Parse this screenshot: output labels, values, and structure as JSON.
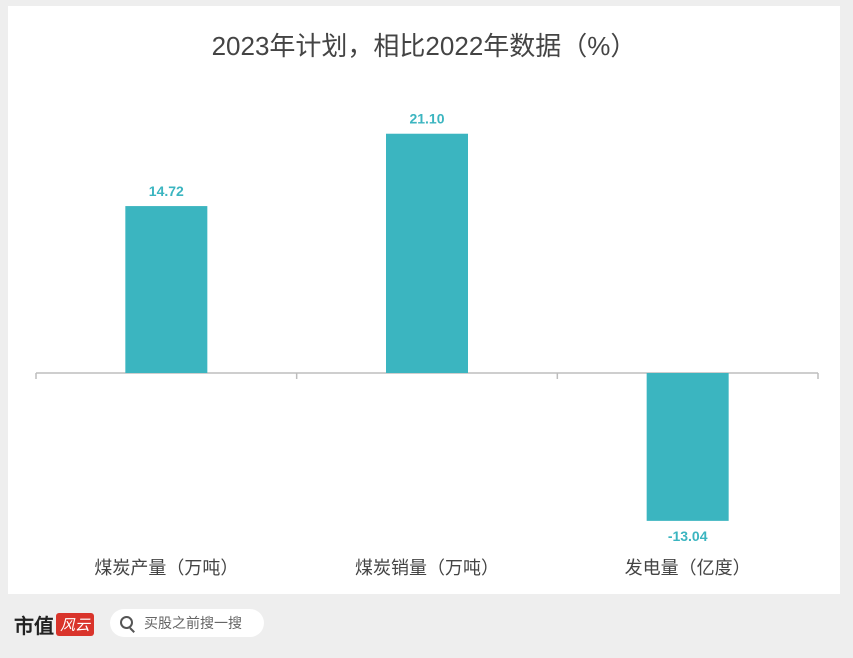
{
  "chart_data": {
    "type": "bar",
    "title": "2023年计划，相比2022年数据（%）",
    "categories": [
      "煤炭产量（万吨）",
      "煤炭销量（万吨）",
      "发电量（亿度）"
    ],
    "values": [
      14.72,
      21.1,
      -13.04
    ],
    "value_labels": [
      "14.72",
      "21.10",
      "-13.04"
    ],
    "ylim": [
      -15,
      26
    ],
    "grid": false,
    "legend": "none",
    "bar_color": "#3bb5c0",
    "label_color": "#3bb5c0"
  },
  "footer": {
    "brand_part1": "市值",
    "brand_part2": "风云",
    "search_placeholder": "买股之前搜一搜",
    "icon": "search-icon"
  },
  "watermark": "市值风云"
}
